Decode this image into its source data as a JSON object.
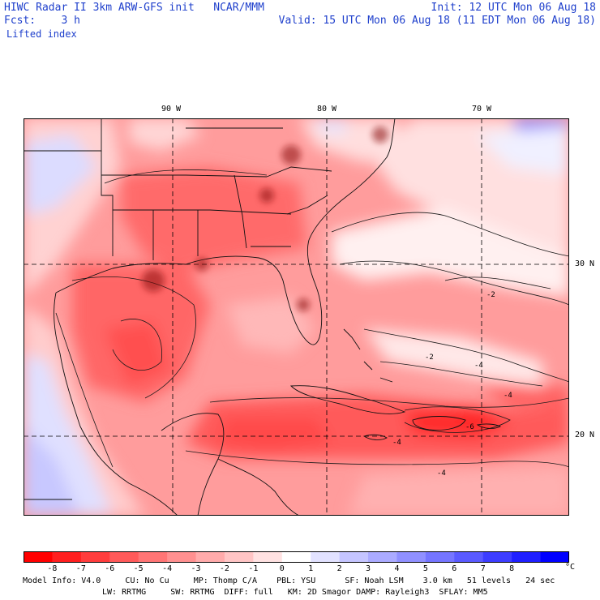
{
  "header": {
    "line1_left": "HIWC Radar II 3km ARW-GFS init   NCAR/MMM",
    "line1_right": "Init: 12 UTC Mon 06 Aug 18",
    "line2_left": "Fcst:    3 h",
    "line2_right": "Valid: 15 UTC Mon 06 Aug 18 (11 EDT Mon 06 Aug 18)",
    "field": "Lifted index"
  },
  "map": {
    "lon_labels": [
      "90 W",
      "80 W",
      "70 W"
    ],
    "lat_labels": [
      "30 N",
      "20 N"
    ],
    "contour_labels": [
      "-2",
      "-2",
      "-4",
      "-4",
      "-6",
      "-4",
      "-4"
    ]
  },
  "colorbar": {
    "tick_labels": [
      "-8",
      "-7",
      "-6",
      "-5",
      "-4",
      "-3",
      "-2",
      "-1",
      "0",
      "1",
      "2",
      "3",
      "4",
      "5",
      "6",
      "7",
      "8"
    ],
    "unit": "°C",
    "colors": [
      "#ff0000",
      "#ff1f1f",
      "#ff3d3d",
      "#ff5a5a",
      "#ff7575",
      "#ff9090",
      "#ffabab",
      "#ffc5c5",
      "#ffe2e2",
      "#ffffff",
      "#e2e2ff",
      "#c5c5ff",
      "#ababff",
      "#9090ff",
      "#7575ff",
      "#5a5aff",
      "#3d3dff",
      "#1f1fff",
      "#0000ff"
    ]
  },
  "footer": {
    "line1": "Model Info: V4.0     CU: No Cu     MP: Thomp C/A    PBL: YSU      SF: Noah LSM    3.0 km   51 levels   24 sec",
    "line2": "LW: RRTMG     SW: RRTMG  DIFF: full   KM: 2D Smagor DAMP: Rayleigh3  SFLAY: MM5"
  }
}
